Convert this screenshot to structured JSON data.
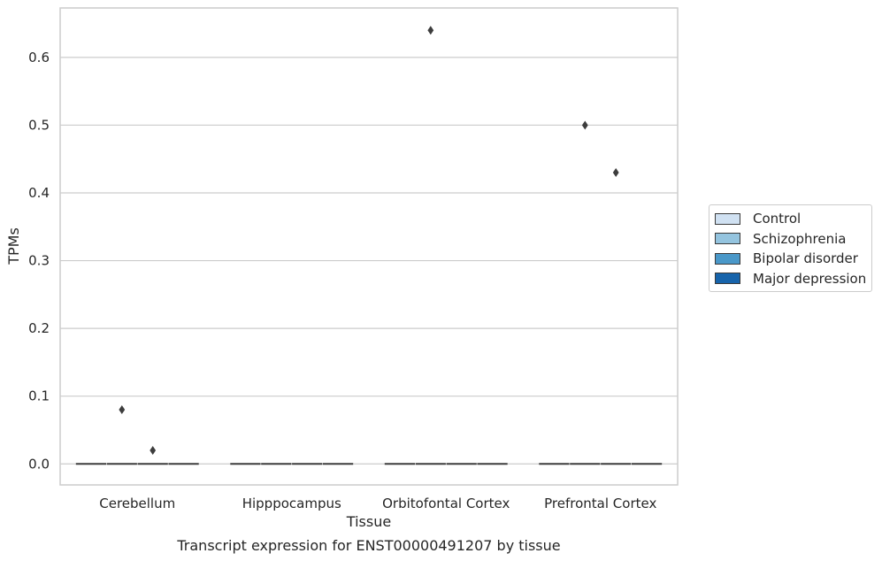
{
  "chart_data": {
    "type": "box",
    "title": "Transcript expression for ENST00000491207 by tissue",
    "xlabel": "Tissue",
    "ylabel": "TPMs",
    "categories": [
      "Cerebellum",
      "Hipppocampus",
      "Orbitofontal Cortex",
      "Prefrontal Cortex"
    ],
    "ylim": [
      -0.031,
      0.673
    ],
    "yticks": [
      0.0,
      0.1,
      0.2,
      0.3,
      0.4,
      0.5,
      0.6
    ],
    "ytick_labels": [
      "0.0",
      "0.1",
      "0.2",
      "0.3",
      "0.4",
      "0.5",
      "0.6"
    ],
    "grid": true,
    "legend_position": "right",
    "series": [
      {
        "name": "Control",
        "color": "#d0e1f2",
        "median": [
          0,
          0,
          0,
          0
        ],
        "outliers": [
          [],
          [],
          [],
          []
        ]
      },
      {
        "name": "Schizophrenia",
        "color": "#94c4df",
        "median": [
          0,
          0,
          0,
          0
        ],
        "outliers": [
          [
            0.08
          ],
          [],
          [
            0.64
          ],
          [
            0.5
          ]
        ]
      },
      {
        "name": "Bipolar disorder",
        "color": "#4a98c9",
        "median": [
          0,
          0,
          0,
          0
        ],
        "outliers": [
          [
            0.02
          ],
          [],
          [],
          [
            0.43
          ]
        ]
      },
      {
        "name": "Major depression",
        "color": "#1764ab",
        "median": [
          0,
          0,
          0,
          0
        ],
        "outliers": [
          [],
          [],
          [],
          []
        ]
      }
    ]
  }
}
